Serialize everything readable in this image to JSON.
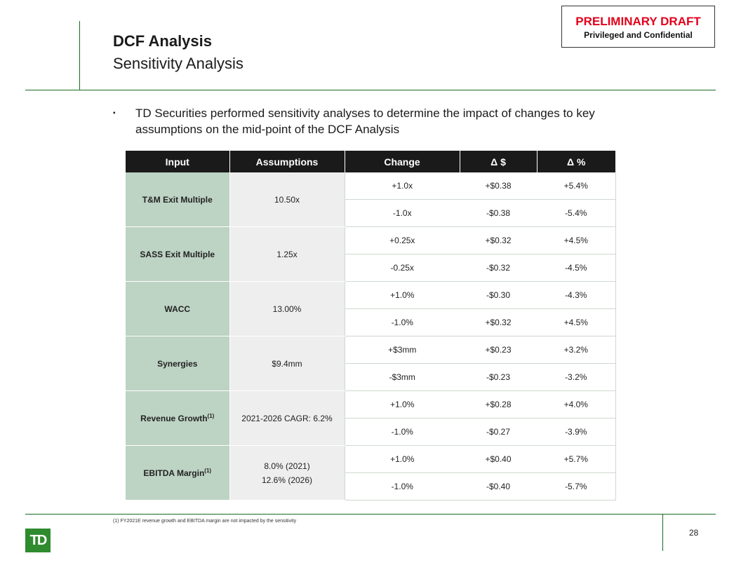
{
  "header": {
    "title": "DCF Analysis",
    "subtitle": "Sensitivity Analysis",
    "draft_label": "PRELIMINARY DRAFT",
    "confidential_label": "Privileged and Confidential"
  },
  "bullet": {
    "marker": "▪",
    "text": "TD Securities performed sensitivity analyses to determine the impact of changes to key assumptions on the mid-point of the DCF Analysis"
  },
  "table": {
    "headers": [
      "Input",
      "Assumptions",
      "Change",
      "Δ $",
      "Δ %"
    ],
    "groups": [
      {
        "input": "T&M Exit Multiple",
        "sup": "",
        "assumption": [
          "10.50x"
        ],
        "rows": [
          [
            "+1.0x",
            "+$0.38",
            "+5.4%"
          ],
          [
            "-1.0x",
            "-$0.38",
            "-5.4%"
          ]
        ]
      },
      {
        "input": "SASS Exit Multiple",
        "sup": "",
        "assumption": [
          "1.25x"
        ],
        "rows": [
          [
            "+0.25x",
            "+$0.32",
            "+4.5%"
          ],
          [
            "-0.25x",
            "-$0.32",
            "-4.5%"
          ]
        ]
      },
      {
        "input": "WACC",
        "sup": "",
        "assumption": [
          "13.00%"
        ],
        "rows": [
          [
            "+1.0%",
            "-$0.30",
            "-4.3%"
          ],
          [
            "-1.0%",
            "+$0.32",
            "+4.5%"
          ]
        ]
      },
      {
        "input": "Synergies",
        "sup": "",
        "assumption": [
          "$9.4mm"
        ],
        "rows": [
          [
            "+$3mm",
            "+$0.23",
            "+3.2%"
          ],
          [
            "-$3mm",
            "-$0.23",
            "-3.2%"
          ]
        ]
      },
      {
        "input": "Revenue Growth",
        "sup": "(1)",
        "assumption": [
          "2021-2026 CAGR: 6.2%"
        ],
        "rows": [
          [
            "+1.0%",
            "+$0.28",
            "+4.0%"
          ],
          [
            "-1.0%",
            "-$0.27",
            "-3.9%"
          ]
        ]
      },
      {
        "input": "EBITDA Margin",
        "sup": "(1)",
        "assumption": [
          "8.0% (2021)",
          "12.6% (2026)"
        ],
        "rows": [
          [
            "+1.0%",
            "+$0.40",
            "+5.7%"
          ],
          [
            "-1.0%",
            "-$0.40",
            "-5.7%"
          ]
        ]
      }
    ]
  },
  "footer": {
    "footnote": "(1)    FY2021E revenue growth and EBITDA margin are not impacted by the sensitivity",
    "page_number": "28",
    "logo_text": "TD"
  }
}
